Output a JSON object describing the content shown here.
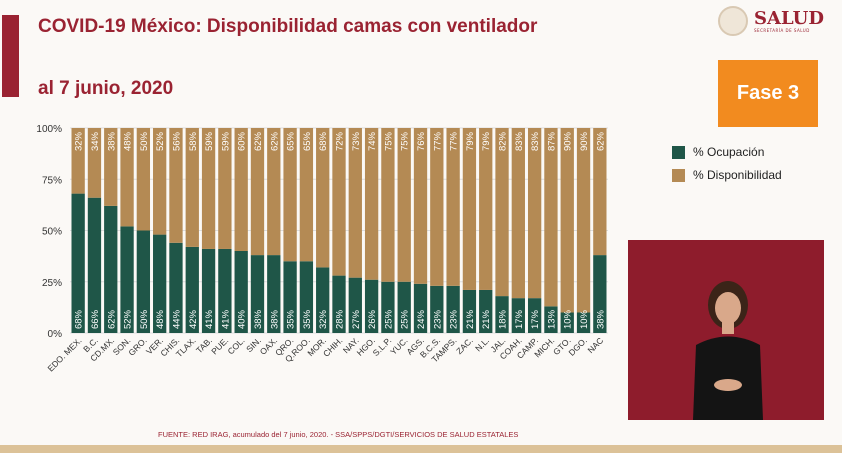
{
  "header": {
    "title_line1": "COVID-19 México: Disponibilidad camas con ventilador",
    "title_line2": "al 7 junio, 2020",
    "logo_text": "SALUD",
    "logo_subtext": "SECRETARÍA DE SALUD"
  },
  "phase_badge": {
    "label": "Fase 3",
    "color": "#f28b1f"
  },
  "footer": {
    "source": "FUENTE: RED IRAG, acumulado del 7 junio, 2020. -  SSA/SPPS/DGTI/SERVICIOS DE SALUD ESTATALES"
  },
  "chart_data": {
    "type": "bar",
    "stacked": true,
    "legend_position": "right",
    "grid": true,
    "yticks": [
      "0%",
      "25%",
      "50%",
      "75%",
      "100%"
    ],
    "ylim": [
      0,
      100
    ],
    "categories": [
      "EDO. MEX.",
      "B.C.",
      "CD.MX.",
      "SON.",
      "GRO.",
      "VER.",
      "CHIS.",
      "TLAX.",
      "TAB.",
      "PUE.",
      "COL.",
      "SIN.",
      "OAX.",
      "QRO.",
      "Q.ROO.",
      "MOR.",
      "CHIH.",
      "NAY.",
      "HGO.",
      "S.L.P.",
      "YUC.",
      "AGS.",
      "B.C.S.",
      "TAMPS.",
      "ZAC.",
      "N.L.",
      "JAL.",
      "COAH.",
      "CAMP.",
      "MICH.",
      "GTO.",
      "DGO.",
      "NAC"
    ],
    "series": [
      {
        "name": "% Ocupación",
        "color": "#1f5648",
        "values": [
          68,
          66,
          62,
          52,
          50,
          48,
          44,
          42,
          41,
          41,
          40,
          38,
          38,
          35,
          35,
          32,
          28,
          27,
          26,
          25,
          25,
          24,
          23,
          23,
          21,
          21,
          18,
          17,
          17,
          13,
          10,
          10,
          38
        ]
      },
      {
        "name": "% Disponibilidad",
        "color": "#b48a54",
        "values": [
          32,
          34,
          38,
          48,
          50,
          52,
          56,
          58,
          59,
          59,
          60,
          62,
          62,
          65,
          65,
          68,
          72,
          73,
          74,
          75,
          75,
          76,
          77,
          77,
          79,
          79,
          82,
          83,
          83,
          87,
          90,
          90,
          62
        ]
      }
    ]
  }
}
